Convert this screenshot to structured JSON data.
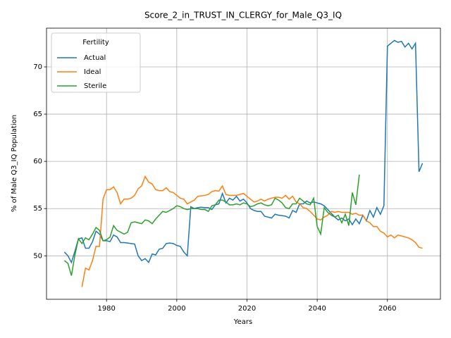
{
  "chart_data": {
    "type": "line",
    "title": "Score_2_in_TRUST_IN_CLERGY_for_Male_Q3_IQ",
    "xlabel": "Years",
    "ylabel": "% of Male Q3_IQ Population",
    "legend_title": "Fertility",
    "legend_loc": "upper left",
    "grid": true,
    "xlim": [
      1962.9,
      2075.1
    ],
    "xticks": [
      1980,
      2000,
      2020,
      2040,
      2060
    ],
    "ylim": [
      45.4,
      74.1
    ],
    "yticks": [
      50,
      55,
      60,
      65,
      70
    ],
    "x": [
      1968,
      1969,
      1970,
      1971,
      1972,
      1973,
      1974,
      1975,
      1976,
      1977,
      1978,
      1979,
      1980,
      1981,
      1982,
      1983,
      1984,
      1985,
      1986,
      1987,
      1988,
      1989,
      1990,
      1991,
      1992,
      1993,
      1994,
      1995,
      1996,
      1997,
      1998,
      1999,
      2000,
      2001,
      2002,
      2003,
      2004,
      2005,
      2006,
      2007,
      2008,
      2009,
      2010,
      2011,
      2012,
      2013,
      2014,
      2015,
      2016,
      2017,
      2018,
      2019,
      2020,
      2021,
      2022,
      2023,
      2024,
      2025,
      2026,
      2027,
      2028,
      2029,
      2030,
      2031,
      2032,
      2033,
      2034,
      2035,
      2036,
      2037,
      2038,
      2039,
      2040,
      2041,
      2042,
      2043,
      2044,
      2045,
      2046,
      2047,
      2048,
      2049,
      2050,
      2051,
      2052,
      2053,
      2054,
      2055,
      2056,
      2057,
      2058,
      2059,
      2060,
      2061,
      2062,
      2063,
      2064,
      2065,
      2066,
      2067,
      2068,
      2069,
      2070
    ],
    "series": [
      {
        "name": "Actual",
        "color": "#1f77b4",
        "values": [
          50.4,
          50.0,
          49.3,
          50.5,
          51.8,
          51.9,
          50.8,
          50.8,
          51.5,
          52.6,
          52.3,
          51.6,
          51.6,
          51.5,
          52.2,
          52.0,
          51.4,
          51.4,
          51.35,
          51.3,
          51.25,
          50.0,
          49.5,
          49.7,
          49.3,
          50.2,
          50.1,
          50.7,
          50.8,
          51.3,
          51.35,
          51.3,
          51.1,
          51.0,
          50.4,
          50.0,
          55.2,
          55.0,
          55.1,
          55.15,
          55.1,
          55.1,
          54.9,
          55.4,
          55.5,
          56.6,
          55.6,
          56.1,
          55.9,
          56.3,
          55.8,
          56.0,
          55.6,
          55.0,
          54.8,
          54.7,
          54.7,
          54.2,
          54.1,
          54.0,
          54.4,
          54.3,
          54.25,
          54.2,
          54.0,
          54.8,
          54.6,
          55.5,
          55.5,
          55.8,
          55.6,
          55.7,
          55.6,
          55.5,
          55.3,
          54.9,
          54.5,
          54.1,
          53.8,
          54.0,
          53.7,
          53.9,
          53.3,
          53.9,
          53.4,
          54.3,
          53.7,
          54.8,
          54.1,
          55.1,
          54.4,
          55.3,
          72.2,
          72.5,
          72.8,
          72.6,
          72.7,
          72.1,
          72.5,
          71.9,
          72.5,
          58.9,
          59.8
        ]
      },
      {
        "name": "Ideal",
        "color": "#ff7f0e",
        "values": [
          null,
          null,
          null,
          null,
          null,
          46.7,
          48.7,
          48.5,
          49.5,
          51.0,
          51.0,
          56.0,
          57.0,
          57.0,
          57.3,
          56.7,
          55.5,
          56.0,
          56.0,
          56.1,
          56.4,
          57.1,
          57.4,
          58.4,
          57.8,
          57.6,
          57.0,
          56.9,
          56.9,
          57.2,
          56.8,
          56.7,
          56.4,
          56.1,
          56.0,
          55.5,
          55.7,
          55.9,
          56.3,
          56.35,
          56.4,
          56.5,
          56.8,
          56.9,
          56.85,
          57.4,
          56.5,
          56.4,
          56.4,
          56.4,
          56.5,
          56.6,
          56.3,
          56.0,
          55.7,
          55.8,
          56.0,
          55.8,
          56.0,
          56.1,
          56.2,
          56.2,
          56.1,
          56.4,
          56.0,
          56.3,
          55.7,
          55.5,
          55.1,
          55.0,
          54.7,
          54.3,
          53.9,
          53.8,
          54.1,
          54.3,
          54.7,
          54.6,
          54.7,
          54.6,
          54.6,
          54.6,
          54.4,
          54.5,
          54.3,
          54.3,
          53.7,
          53.5,
          53.1,
          53.1,
          52.6,
          52.4,
          52.0,
          52.2,
          51.9,
          52.2,
          52.1,
          52.0,
          51.9,
          51.7,
          51.4,
          50.9,
          50.8
        ]
      },
      {
        "name": "Sterile",
        "color": "#2ca02c",
        "values": [
          49.5,
          49.2,
          47.9,
          50.1,
          51.8,
          51.3,
          51.9,
          51.7,
          52.3,
          53.0,
          52.7,
          51.6,
          51.7,
          52.0,
          53.2,
          52.7,
          52.5,
          52.3,
          52.5,
          53.5,
          53.6,
          53.5,
          53.4,
          53.8,
          53.7,
          53.4,
          53.9,
          54.3,
          54.7,
          54.6,
          54.8,
          55.0,
          55.3,
          55.2,
          55.0,
          54.9,
          55.0,
          55.0,
          55.0,
          54.9,
          54.9,
          54.7,
          55.3,
          55.4,
          55.9,
          55.9,
          55.7,
          55.4,
          55.4,
          55.5,
          55.4,
          55.6,
          55.5,
          55.2,
          55.3,
          55.5,
          55.6,
          55.4,
          55.3,
          55.4,
          56.1,
          55.9,
          55.6,
          55.1,
          55.0,
          55.5,
          55.5,
          56.1,
          55.8,
          55.5,
          55.4,
          56.1,
          53.1,
          52.3,
          55.1,
          54.6,
          54.3,
          54.1,
          54.3,
          53.5,
          54.4,
          53.2,
          56.7,
          55.4,
          58.6,
          null,
          null,
          null,
          null,
          null,
          null,
          null,
          null,
          null,
          null,
          null,
          null,
          null,
          null,
          null,
          null,
          null,
          null
        ]
      }
    ]
  }
}
